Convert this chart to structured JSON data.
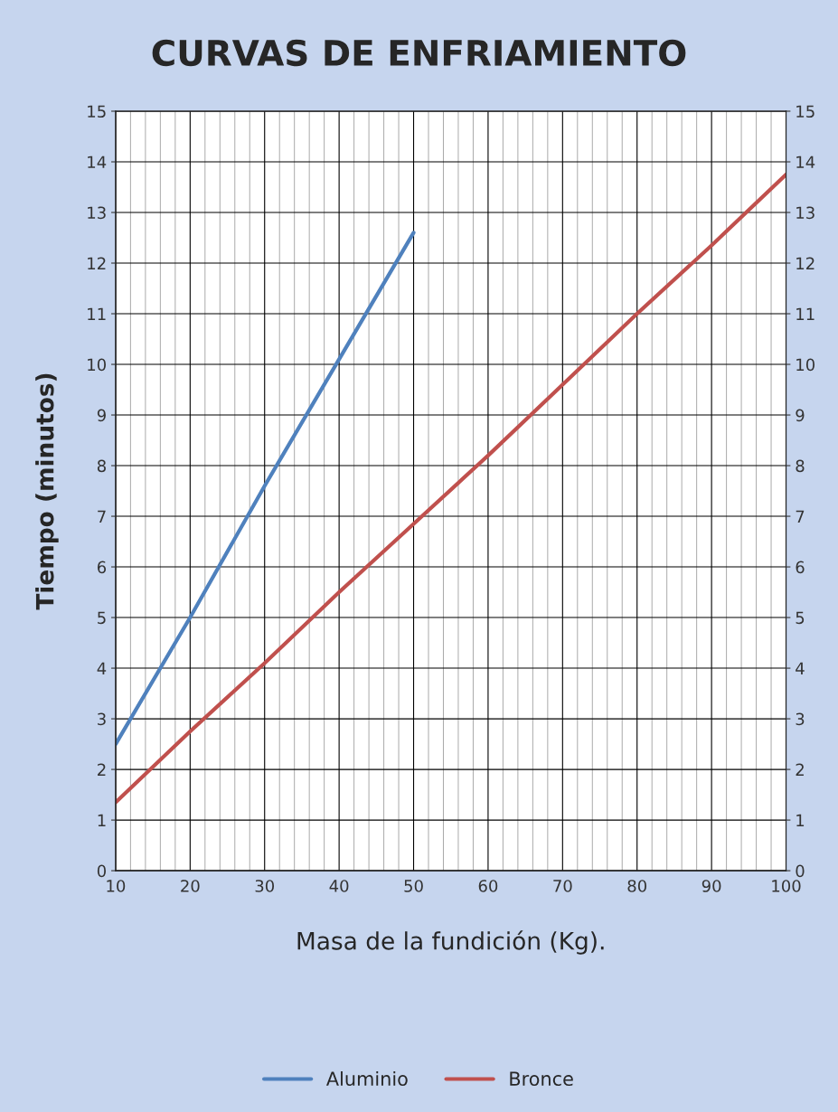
{
  "chart_data": {
    "type": "line",
    "title": "CURVAS DE ENFRIAMIENTO",
    "xlabel": "Masa de la fundición (Kg).",
    "ylabel": "Tiempo (minutos)",
    "x": [
      10,
      20,
      30,
      40,
      50,
      60,
      70,
      80,
      90,
      100
    ],
    "series": [
      {
        "name": "Aluminio",
        "color": "#4f81bd",
        "values": [
          2.5,
          5.0,
          7.6,
          10.1,
          12.6,
          null,
          null,
          null,
          null,
          null
        ]
      },
      {
        "name": "Bronce",
        "color": "#c0504d",
        "values": [
          1.35,
          2.75,
          4.1,
          5.5,
          6.85,
          8.2,
          9.6,
          11.0,
          12.35,
          13.75
        ]
      }
    ],
    "xlim": [
      10,
      100
    ],
    "xticks": [
      10,
      {
        "value": 12,
        "label": null
      },
      {
        "value": 14,
        "label": null
      },
      {
        "value": 16,
        "label": null
      },
      {
        "value": 18,
        "label": null
      },
      20,
      {
        "value": 22,
        "label": null
      },
      {
        "value": 24,
        "label": null
      },
      {
        "value": 26,
        "label": null
      },
      {
        "value": 28,
        "label": null
      },
      30,
      {
        "value": 32,
        "label": null
      },
      {
        "value": 34,
        "label": null
      },
      {
        "value": 36,
        "label": null
      },
      {
        "value": 38,
        "label": null
      },
      40,
      {
        "value": 42,
        "label": null
      },
      {
        "value": 44,
        "label": null
      },
      {
        "value": 46,
        "label": null
      },
      {
        "value": 48,
        "label": null
      },
      50,
      {
        "value": 52,
        "label": null
      },
      {
        "value": 54,
        "label": null
      },
      {
        "value": 56,
        "label": null
      },
      {
        "value": 58,
        "label": null
      },
      60,
      {
        "value": 62,
        "label": null
      },
      {
        "value": 64,
        "label": null
      },
      {
        "value": 66,
        "label": null
      },
      {
        "value": 68,
        "label": null
      },
      70,
      {
        "value": 72,
        "label": null
      },
      {
        "value": 74,
        "label": null
      },
      {
        "value": 76,
        "label": null
      },
      {
        "value": 78,
        "label": null
      },
      80,
      {
        "value": 82,
        "label": null
      },
      {
        "value": 84,
        "label": null
      },
      {
        "value": 86,
        "label": null
      },
      {
        "value": 88,
        "label": null
      },
      90,
      {
        "value": 92,
        "label": null
      },
      {
        "value": 94,
        "label": null
      },
      {
        "value": 96,
        "label": null
      },
      {
        "value": 98,
        "label": null
      },
      100
    ],
    "ylim": [
      0,
      15
    ],
    "yticks": [
      0,
      1,
      2,
      3,
      4,
      5,
      6,
      7,
      8,
      9,
      10,
      11,
      12,
      13,
      14,
      15
    ],
    "y2lim": [
      0,
      15
    ],
    "y2ticks": [
      0,
      1,
      2,
      3,
      4,
      5,
      6,
      7,
      8,
      9,
      10,
      11,
      12,
      13,
      14,
      15
    ],
    "grid": true,
    "legend": "bottom",
    "marker": "none",
    "line_style": "solid"
  }
}
